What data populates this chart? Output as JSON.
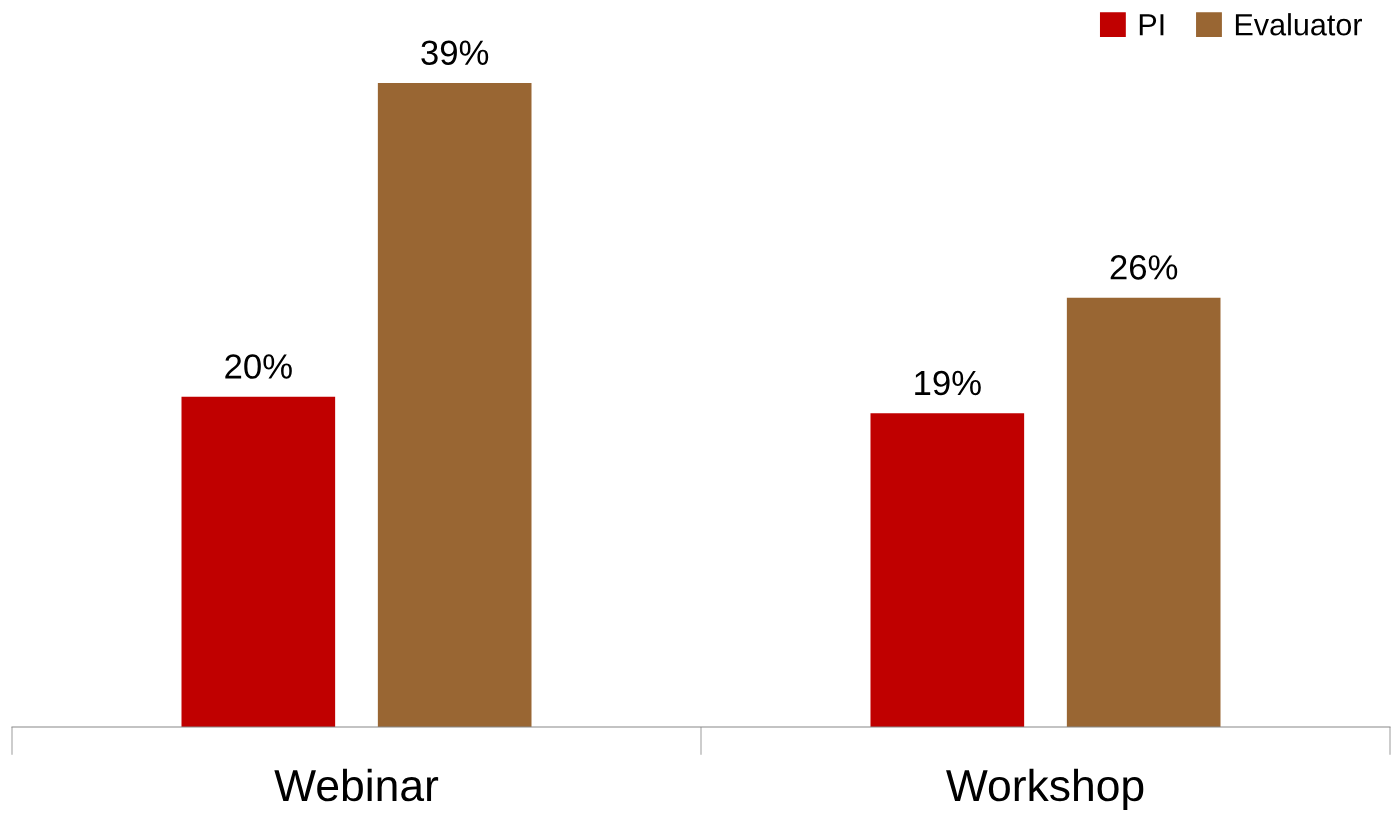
{
  "chart_data": {
    "type": "bar",
    "categories": [
      "Webinar",
      "Workshop"
    ],
    "series": [
      {
        "name": "PI",
        "color": "#c00000",
        "values": [
          20,
          19
        ],
        "value_labels": [
          "20%",
          "19%"
        ]
      },
      {
        "name": "Evaluator",
        "color": "#996633",
        "values": [
          39,
          26
        ],
        "value_labels": [
          "39%",
          "26%"
        ]
      }
    ],
    "legend": "top right",
    "grid": false,
    "tick_labels": "x"
  }
}
